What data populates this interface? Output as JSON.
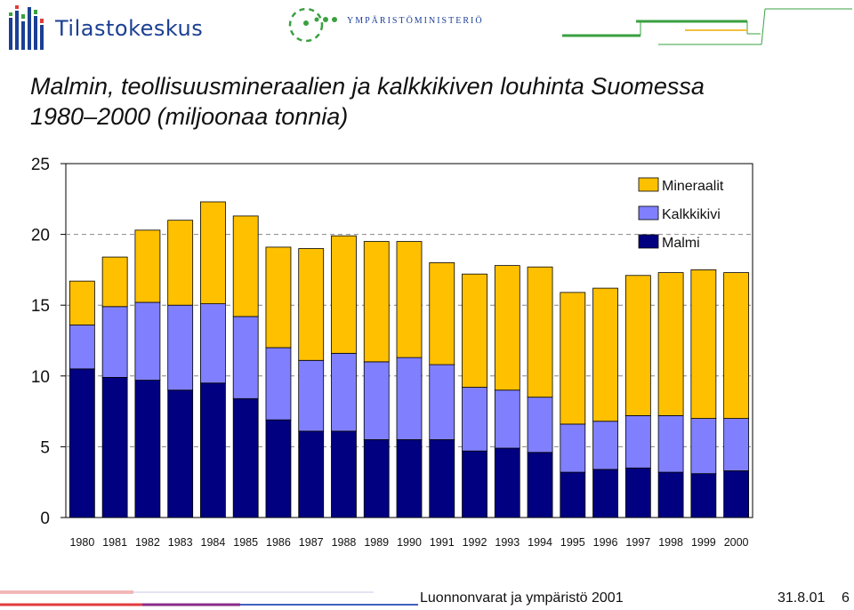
{
  "header": {
    "left_logo_text": "Tilastokeskus",
    "right_logo_text": "YMPÄRISTÖMINISTERIÖ"
  },
  "title_line1": "Malmin, teollisuusmineraalien ja kalkkikiven louhinta Suomessa",
  "title_line2": "1980–2000 (miljoonaa tonnia)",
  "footer": {
    "caption": "Luonnonvarat ja ympäristö 2001",
    "date": "31.8.01",
    "page": "6"
  },
  "colors": {
    "malmi": "#000080",
    "kalkkikivi": "#8080ff",
    "mineraalit": "#ffc000",
    "brand_blue": "#1b3f93",
    "brand_green": "#3aa040"
  },
  "chart_data": {
    "type": "bar",
    "stacked": true,
    "categories": [
      "1980",
      "1981",
      "1982",
      "1983",
      "1984",
      "1985",
      "1986",
      "1987",
      "1988",
      "1989",
      "1990",
      "1991",
      "1992",
      "1993",
      "1994",
      "1995",
      "1996",
      "1997",
      "1998",
      "1999",
      "2000"
    ],
    "series": [
      {
        "name": "Malmi",
        "color": "#000080",
        "values": [
          10.5,
          9.9,
          9.7,
          9.0,
          9.5,
          8.4,
          6.9,
          6.1,
          6.1,
          5.5,
          5.5,
          5.5,
          4.7,
          4.9,
          4.6,
          3.2,
          3.4,
          3.5,
          3.2,
          3.1,
          3.3
        ]
      },
      {
        "name": "Kalkkikivi",
        "color": "#8080ff",
        "values": [
          3.1,
          5.0,
          5.5,
          6.0,
          5.6,
          5.8,
          5.1,
          5.0,
          5.5,
          5.5,
          5.8,
          5.3,
          4.5,
          4.1,
          3.9,
          3.4,
          3.4,
          3.7,
          4.0,
          3.9,
          3.7
        ]
      },
      {
        "name": "Mineraalit",
        "color": "#ffc000",
        "values": [
          3.1,
          3.5,
          5.1,
          6.0,
          7.2,
          7.1,
          7.1,
          7.9,
          8.3,
          8.5,
          8.2,
          7.2,
          8.0,
          8.8,
          9.2,
          9.3,
          9.4,
          9.9,
          10.1,
          10.5,
          10.3
        ]
      }
    ],
    "ylim": [
      0,
      25
    ],
    "yticks": [
      0,
      5,
      10,
      15,
      20,
      25
    ],
    "grid": true,
    "legend_position": "top-right",
    "legend_order": [
      "Mineraalit",
      "Kalkkikivi",
      "Malmi"
    ]
  }
}
